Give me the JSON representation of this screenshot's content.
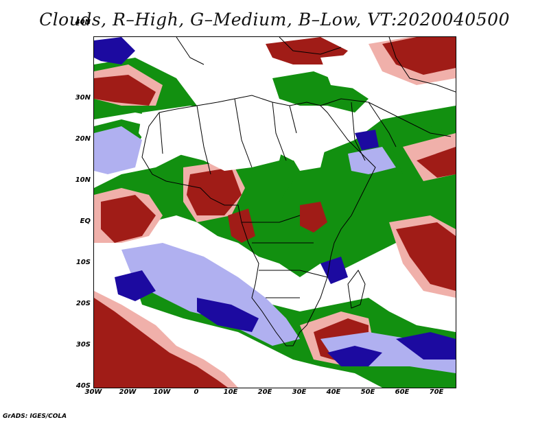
{
  "title": "Clouds, R–High, G–Medium, B–Low, VT:2020040500",
  "footer": "GrADS: IGES/COLA",
  "colors": {
    "high_cloud": "#a01c17",
    "high_cloud_light": "#f0b0aa",
    "medium_cloud": "#129010",
    "low_cloud": "#1c0aa0",
    "low_cloud_light": "#b0b0f0",
    "land_outline": "#000000",
    "clear": "#ffffff"
  },
  "map": {
    "lat_labels": [
      "40N",
      "30N",
      "20N",
      "10N",
      "EQ",
      "10S",
      "20S",
      "30S",
      "40S"
    ],
    "lon_labels": [
      "30W",
      "20W",
      "10W",
      "0",
      "10E",
      "20E",
      "30E",
      "40E",
      "50E",
      "60E",
      "70E"
    ]
  }
}
